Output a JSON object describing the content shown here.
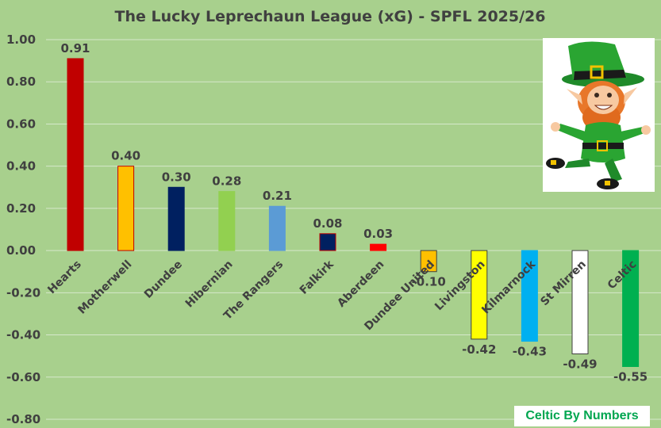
{
  "chart_data": {
    "type": "bar",
    "title": "The Lucky Leprechaun League (xG) - SPFL 2025/26",
    "xlabel": "",
    "ylabel": "",
    "ylim": [
      -0.8,
      1.0
    ],
    "yticks": [
      1.0,
      0.8,
      0.6,
      0.4,
      0.2,
      0.0,
      -0.2,
      -0.4,
      -0.6,
      -0.8
    ],
    "ytick_labels": [
      "1.00",
      "0.80",
      "0.60",
      "0.40",
      "0.20",
      "0.00",
      "-0.20",
      "-0.40",
      "-0.60",
      "-0.80"
    ],
    "grid": true,
    "categories": [
      "Hearts",
      "Motherwell",
      "Dundee",
      "Hibernian",
      "The Rangers",
      "Falkirk",
      "Aberdeen",
      "Dundee United",
      "Livingston",
      "Kilmarnock",
      "St Mirren",
      "Celtic"
    ],
    "values": [
      0.91,
      0.4,
      0.3,
      0.28,
      0.21,
      0.08,
      0.03,
      -0.1,
      -0.42,
      -0.43,
      -0.49,
      -0.55
    ],
    "value_labels": [
      "0.91",
      "0.40",
      "0.30",
      "0.28",
      "0.21",
      "0.08",
      "0.03",
      "-0.10",
      "-0.42",
      "-0.43",
      "-0.49",
      "-0.55"
    ],
    "colors": [
      "#c00000",
      "#ffc000",
      "#002060",
      "#92d050",
      "#5b9bd5",
      "#002060",
      "#ff0000",
      "#ffc000",
      "#ffff00",
      "#00b0f0",
      "#ffffff",
      "#00b050"
    ],
    "outlines": [
      "#c00000",
      "#c00000",
      "#002060",
      "#92d050",
      "#5b9bd5",
      "#c00000",
      "#ff0000",
      "#404040",
      "#404040",
      "#00b0f0",
      "#404040",
      "#00b050"
    ]
  },
  "badge": {
    "text": "Celtic By Numbers",
    "color": "#00a650"
  },
  "mascot": {
    "icon": "leprechaun-icon"
  }
}
